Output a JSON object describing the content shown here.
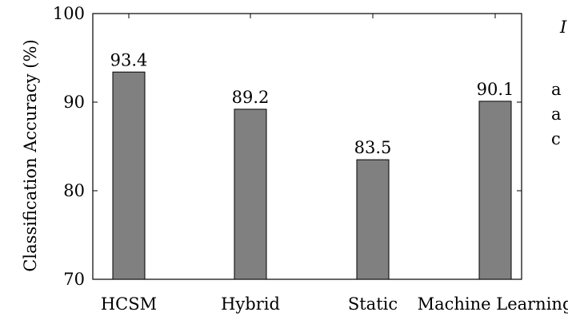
{
  "chart_data": {
    "type": "bar",
    "categories": [
      "HCSM",
      "Hybrid",
      "Static",
      "Machine Learning"
    ],
    "values": [
      93.4,
      89.2,
      83.5,
      90.1
    ],
    "data_labels": [
      "93.4",
      "89.2",
      "83.5",
      "90.1"
    ],
    "title": "",
    "xlabel": "",
    "ylabel": "Classification Accuracy (%)",
    "ylim": [
      70,
      100
    ],
    "yticks": [
      70,
      80,
      90,
      100
    ],
    "grid": false,
    "bar_color": "#808080",
    "bar_edge_color": "#000000"
  },
  "side_text": {
    "line1": "I",
    "line2": "a",
    "line3": "a",
    "line4": "c"
  }
}
